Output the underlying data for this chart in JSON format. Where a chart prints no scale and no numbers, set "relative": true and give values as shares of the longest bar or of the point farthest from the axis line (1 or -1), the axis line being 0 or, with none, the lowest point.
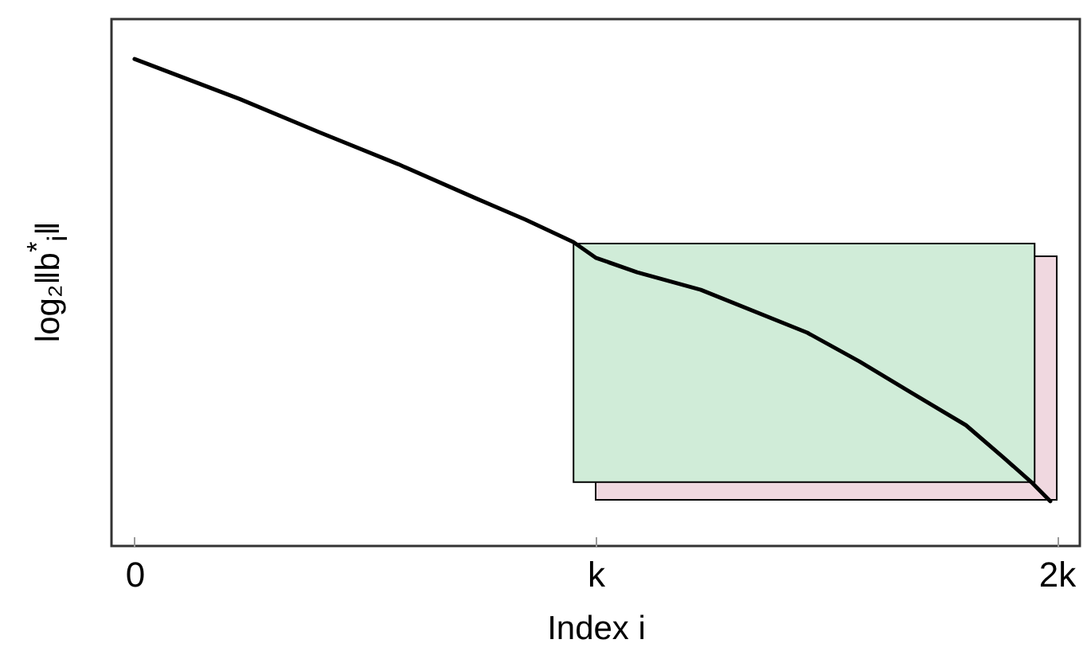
{
  "chart_data": {
    "type": "line",
    "xlabel": "Index i",
    "ylabel": "log₂‖b$^{*}$$_{i}$‖",
    "relative": true,
    "xlim": [
      -0.05,
      2.05
    ],
    "xticks": [
      {
        "value": 0,
        "label": "0"
      },
      {
        "value": 1,
        "label": "k"
      },
      {
        "value": 2,
        "label": "2k"
      }
    ],
    "series": [
      {
        "color": "#000000",
        "x": [
          0,
          0.228,
          0.4,
          0.572,
          0.745,
          0.848,
          0.952,
          1.0,
          1.09,
          1.228,
          1.459,
          1.572,
          1.686,
          1.803,
          1.883,
          1.945,
          1.986
        ],
        "values": [
          1,
          0.918,
          0.85,
          0.784,
          0.712,
          0.67,
          0.624,
          0.592,
          0.562,
          0.526,
          0.438,
          0.379,
          0.314,
          0.248,
          0.183,
          0.131,
          0.092
        ]
      }
    ]
  }
}
